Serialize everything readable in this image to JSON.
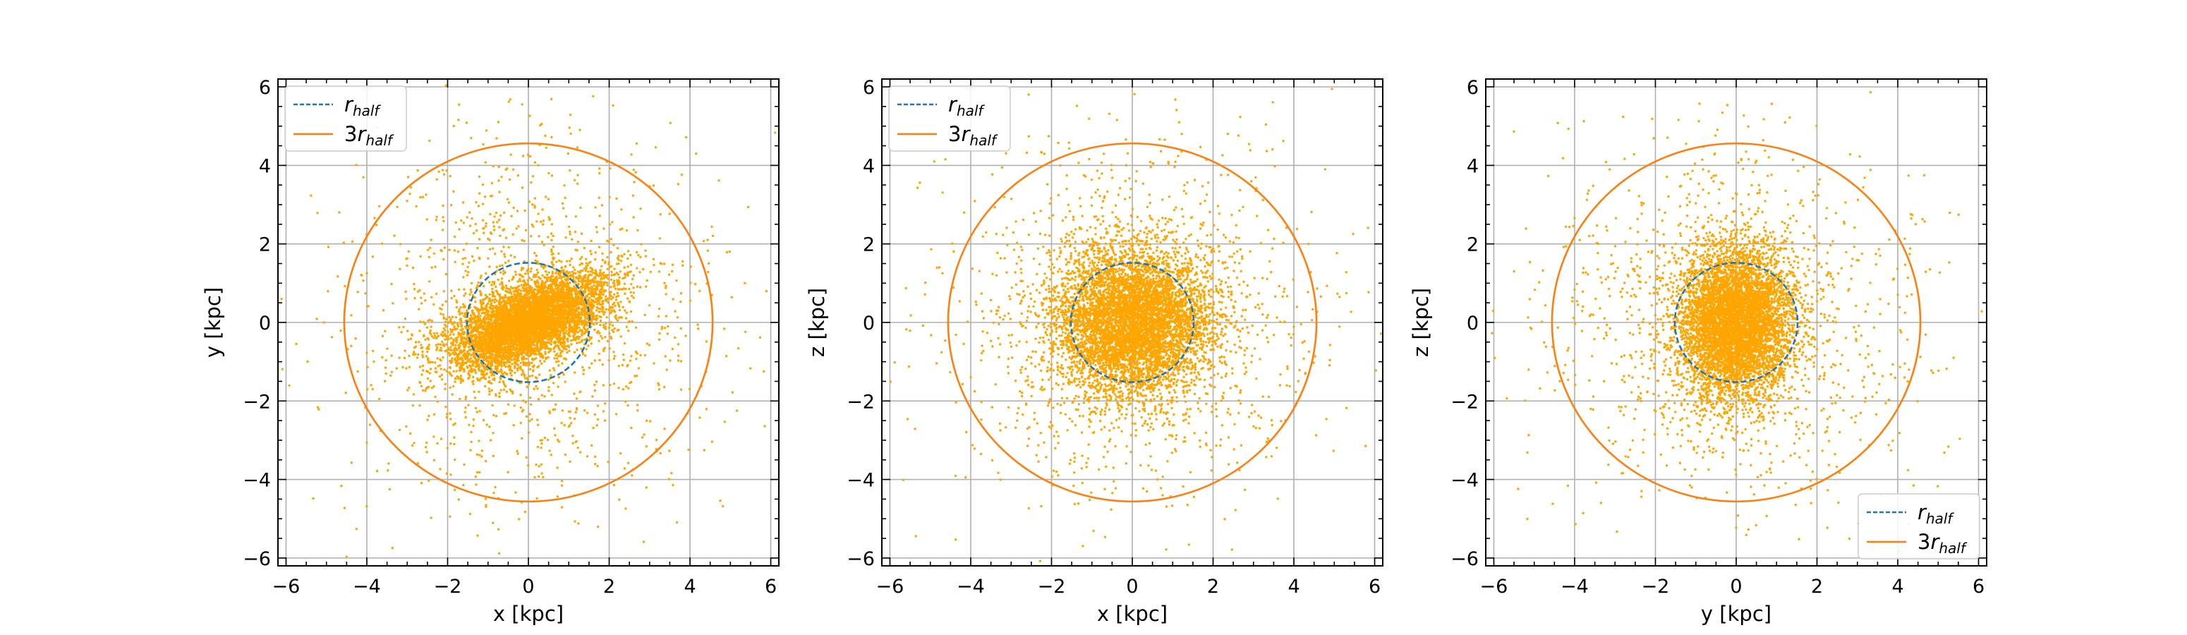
{
  "colors": {
    "points": "#ffa500",
    "r_half_line": "#1f77b4",
    "three_r_half_line": "#ff7f0e",
    "grid": "#b0b0b0",
    "axes": "#000000"
  },
  "chart_data": [
    {
      "type": "scatter",
      "xlabel": "x [kpc]",
      "ylabel": "y [kpc]",
      "xlim": [
        -6.2,
        6.2
      ],
      "ylim": [
        -6.2,
        6.2
      ],
      "xticks": [
        "−6",
        "−4",
        "−2",
        "0",
        "2",
        "4",
        "6"
      ],
      "yticks": [
        "−6",
        "−4",
        "−2",
        "0",
        "2",
        "4",
        "6"
      ],
      "grid": true,
      "legend_position": "upper-left",
      "circles": [
        {
          "label_base": "r",
          "label_sub": "half",
          "radius_kpc": 1.52,
          "style": "dashed",
          "color_key": "r_half_line"
        },
        {
          "label_base": "3r",
          "label_sub": "half",
          "radius_kpc": 4.56,
          "style": "solid",
          "color_key": "three_r_half_line"
        }
      ],
      "distribution": {
        "core_sigma_x": 0.95,
        "core_sigma_y": 0.6,
        "correlation": 0.55,
        "halo_sigma": 2.3
      }
    },
    {
      "type": "scatter",
      "xlabel": "x [kpc]",
      "ylabel": "z [kpc]",
      "xlim": [
        -6.2,
        6.2
      ],
      "ylim": [
        -6.2,
        6.2
      ],
      "xticks": [
        "−6",
        "−4",
        "−2",
        "0",
        "2",
        "4",
        "6"
      ],
      "yticks": [
        "−6",
        "−4",
        "−2",
        "0",
        "2",
        "4",
        "6"
      ],
      "grid": true,
      "legend_position": "upper-left",
      "circles": [
        {
          "label_base": "r",
          "label_sub": "half",
          "radius_kpc": 1.52,
          "style": "dashed",
          "color_key": "r_half_line"
        },
        {
          "label_base": "3r",
          "label_sub": "half",
          "radius_kpc": 4.56,
          "style": "solid",
          "color_key": "three_r_half_line"
        }
      ],
      "distribution": {
        "core_sigma_x": 0.95,
        "core_sigma_y": 0.95,
        "correlation": 0.0,
        "halo_sigma": 2.3
      }
    },
    {
      "type": "scatter",
      "xlabel": "y [kpc]",
      "ylabel": "z [kpc]",
      "xlim": [
        -6.2,
        6.2
      ],
      "ylim": [
        -6.2,
        6.2
      ],
      "xticks": [
        "−6",
        "−4",
        "−2",
        "0",
        "2",
        "4",
        "6"
      ],
      "yticks": [
        "−6",
        "−4",
        "−2",
        "0",
        "2",
        "4",
        "6"
      ],
      "grid": true,
      "legend_position": "lower-right",
      "circles": [
        {
          "label_base": "r",
          "label_sub": "half",
          "radius_kpc": 1.52,
          "style": "dashed",
          "color_key": "r_half_line"
        },
        {
          "label_base": "3r",
          "label_sub": "half",
          "radius_kpc": 4.56,
          "style": "solid",
          "color_key": "three_r_half_line"
        }
      ],
      "distribution": {
        "core_sigma_x": 0.7,
        "core_sigma_y": 0.95,
        "correlation": 0.0,
        "halo_sigma": 2.3
      }
    }
  ]
}
